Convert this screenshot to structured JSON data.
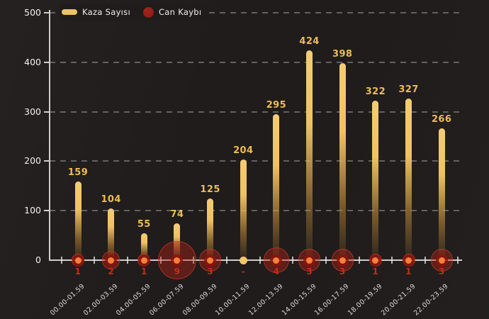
{
  "legend": {
    "kaza_label": "Kaza Sayısı",
    "can_label": "Can Kaybı"
  },
  "chart_data": {
    "type": "bar",
    "variant": "lollipop-bars-with-bubble-death-markers",
    "title": "",
    "xlabel": "",
    "ylabel": "",
    "categories": [
      "00.00-01.59",
      "02.00-03.59",
      "04.00-05.59",
      "06.00-07.59",
      "08.00-09.59",
      "10.00-11.59",
      "12.00-13.59",
      "14.00-15.59",
      "16.00-17.59",
      "18.00-19.59",
      "20.00-21.59",
      "22.00-23.59"
    ],
    "series": [
      {
        "name": "Kaza Sayısı",
        "color": "#EFC263",
        "values": [
          159,
          104,
          55,
          74,
          125,
          204,
          295,
          424,
          398,
          322,
          327,
          266
        ]
      },
      {
        "name": "Can Kaybı",
        "color": "#C2271A",
        "values": [
          1,
          2,
          1,
          9,
          3,
          0,
          4,
          3,
          3,
          1,
          1,
          3
        ],
        "display_labels": [
          "1",
          "2",
          "1",
          "9",
          "3",
          "-",
          "4",
          "3",
          "3",
          "1",
          "1",
          "3"
        ]
      }
    ],
    "ylim": [
      0,
      500
    ],
    "yticks": [
      0,
      100,
      200,
      300,
      400,
      500
    ],
    "grid": "horizontal-dashed",
    "legend_position": "top-left",
    "colors": {
      "background": "#1F1C1B",
      "gold": "#EFC263",
      "gold_light": "#F4CC72",
      "bar_fade": "rgba(150,100,40,0.10)",
      "value_label": "#EDBD54",
      "death_label": "#D0281A",
      "marker_fill": "rgba(190,34,22,0.40)",
      "marker_border": "rgba(228,66,44,0.55)",
      "marker_core": "rgba(139,20,12,0.85)",
      "marker_dot": "#F4813A",
      "zero_dot": "#F2C76C",
      "axis": "#CFCCCA",
      "grid_color": "rgba(255,255,255,0.30)",
      "y_tick_label": "#F2F1F0",
      "x_tick_label": "#DCDCDC",
      "legend_circle": "#8B1B12"
    }
  }
}
